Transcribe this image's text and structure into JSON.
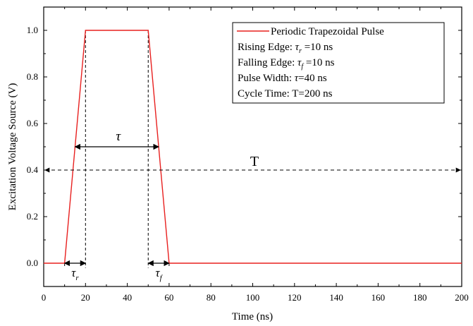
{
  "chart_data": {
    "type": "line",
    "xlabel": "Time (ns)",
    "ylabel": "Excitation Voltage Source (V)",
    "xlim": [
      0,
      200
    ],
    "ylim": [
      -0.1,
      1.1
    ],
    "x_ticks": [
      0,
      20,
      40,
      60,
      80,
      100,
      120,
      140,
      160,
      180,
      200
    ],
    "x_tick_labels": [
      "0",
      "20",
      "40",
      "60",
      "80",
      "100",
      "120",
      "140",
      "160",
      "180",
      "200"
    ],
    "y_ticks": [
      0.0,
      0.2,
      0.4,
      0.6,
      0.8,
      1.0
    ],
    "y_tick_labels": [
      "0.0",
      "0.2",
      "0.4",
      "0.6",
      "0.8",
      "1.0"
    ],
    "grid": false,
    "legend_position": "top-right",
    "series": [
      {
        "name": "Periodic Trapezoidal Pulse",
        "color": "#e8201f",
        "x": [
          0,
          10,
          20,
          50,
          60,
          200
        ],
        "y": [
          0,
          0,
          1.0,
          1.0,
          0,
          0
        ]
      }
    ],
    "legend_lines": [
      {
        "prefix": "Rising Edge: ",
        "sym": "τ",
        "sub": "r",
        "suffix": " =10 ns"
      },
      {
        "prefix": "Falling Edge: ",
        "sym": "τ",
        "sub": "f",
        "suffix": " =10 ns"
      },
      {
        "prefix": "Pulse Width: ",
        "sym": "τ",
        "sub": "",
        "suffix": "=40 ns"
      },
      {
        "prefix": "Cycle Time: ",
        "sym": "",
        "sub": "",
        "suffix": "T=200 ns"
      }
    ],
    "annotations": {
      "tau": {
        "symbol": "τ",
        "x_from": 15,
        "x_to": 55,
        "y": 0.5
      },
      "period": {
        "symbol": "T",
        "x_from": 0,
        "x_to": 200,
        "y": 0.4
      },
      "rise": {
        "symbol": "τ",
        "sub": "r",
        "x_from": 10,
        "x_to": 20,
        "y": 0.0
      },
      "fall": {
        "symbol": "τ",
        "sub": "f",
        "x_from": 50,
        "x_to": 60,
        "y": 0.0
      }
    }
  }
}
